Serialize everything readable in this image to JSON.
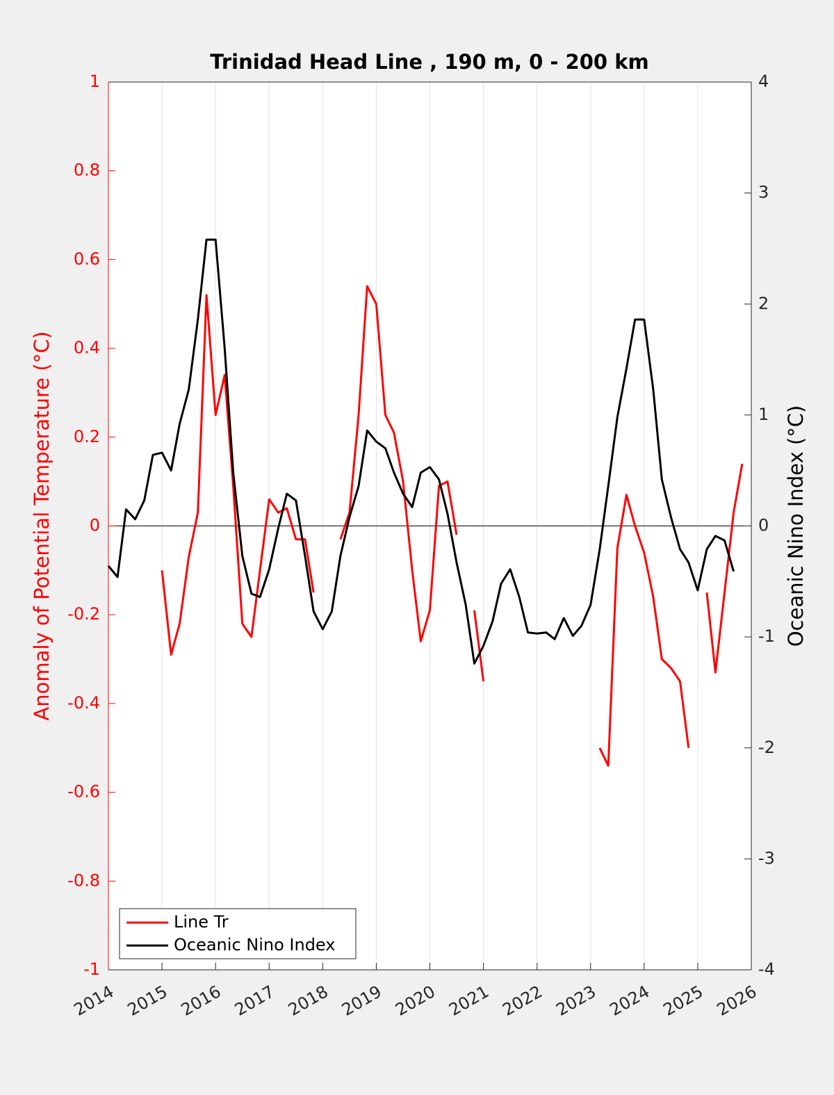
{
  "chart_data": {
    "type": "line",
    "title": "Trinidad Head Line , 190 m, 0 - 200 km",
    "ylabel": "Anomaly of Potential Temperature (°C)",
    "y2label": "Oceanic Nino Index (°C)",
    "x": [
      2014,
      2014.17,
      2014.33,
      2014.5,
      2014.67,
      2014.83,
      2015,
      2015.17,
      2015.33,
      2015.5,
      2015.67,
      2015.83,
      2016,
      2016.17,
      2016.33,
      2016.5,
      2016.67,
      2016.83,
      2017,
      2017.17,
      2017.33,
      2017.5,
      2017.67,
      2017.83,
      2018,
      2018.17,
      2018.33,
      2018.5,
      2018.67,
      2018.83,
      2019,
      2019.17,
      2019.33,
      2019.5,
      2019.67,
      2019.83,
      2020,
      2020.17,
      2020.33,
      2020.5,
      2020.67,
      2020.83,
      2021,
      2021.17,
      2021.33,
      2021.5,
      2021.67,
      2021.83,
      2022,
      2022.17,
      2022.33,
      2022.5,
      2022.67,
      2022.83,
      2023,
      2023.17,
      2023.33,
      2023.5,
      2023.67,
      2023.83,
      2024,
      2024.17,
      2024.33,
      2024.5,
      2024.67,
      2024.83,
      2025,
      2025.17,
      2025.33,
      2025.5,
      2025.67,
      2025.83
    ],
    "series": [
      {
        "name": "Line Tr",
        "color": "#ff0000",
        "values": [
          null,
          null,
          null,
          null,
          null,
          null,
          -0.1,
          -0.29,
          -0.22,
          -0.07,
          0.03,
          0.52,
          0.25,
          0.34,
          0.09,
          -0.22,
          -0.25,
          -0.1,
          0.06,
          0.03,
          0.04,
          -0.03,
          -0.03,
          -0.15,
          null,
          null,
          -0.03,
          0.03,
          0.25,
          0.54,
          0.5,
          0.25,
          0.21,
          0.1,
          -0.1,
          -0.26,
          -0.19,
          0.09,
          0.1,
          -0.02,
          null,
          -0.19,
          -0.35,
          null,
          null,
          null,
          null,
          null,
          null,
          null,
          null,
          null,
          null,
          null,
          null,
          -0.5,
          -0.54,
          -0.05,
          0.07,
          0.0,
          -0.06,
          -0.16,
          -0.3,
          -0.32,
          -0.35,
          -0.5,
          null,
          -0.15,
          -0.33,
          -0.15,
          0.03,
          0.14
        ]
      },
      {
        "name": "Oceanic Nino Index",
        "color": "#000000",
        "axis": "y2",
        "values": [
          -0.36,
          -0.46,
          0.15,
          0.06,
          0.23,
          0.64,
          0.66,
          0.5,
          0.92,
          1.23,
          1.86,
          2.58,
          2.58,
          1.6,
          0.48,
          -0.27,
          -0.61,
          -0.64,
          -0.39,
          -0.02,
          0.29,
          0.23,
          -0.27,
          -0.77,
          -0.93,
          -0.77,
          -0.27,
          0.08,
          0.36,
          0.86,
          0.76,
          0.7,
          0.48,
          0.29,
          0.17,
          0.48,
          0.53,
          0.42,
          0.11,
          -0.33,
          -0.71,
          -1.24,
          -1.08,
          -0.86,
          -0.52,
          -0.39,
          -0.64,
          -0.96,
          -0.97,
          -0.96,
          -1.02,
          -0.83,
          -0.99,
          -0.9,
          -0.71,
          -0.21,
          0.36,
          0.98,
          1.42,
          1.86,
          1.86,
          1.23,
          0.42,
          0.08,
          -0.21,
          -0.33,
          -0.58,
          -0.21,
          -0.09,
          -0.13,
          -0.41,
          null
        ]
      }
    ],
    "xlim": [
      2014,
      2026
    ],
    "xticks": [
      2014,
      2015,
      2016,
      2017,
      2018,
      2019,
      2020,
      2021,
      2022,
      2023,
      2024,
      2025,
      2026
    ],
    "ylim": [
      -1,
      1
    ],
    "yticks": [
      -1,
      -0.8,
      -0.6,
      -0.4,
      -0.2,
      0,
      0.2,
      0.4,
      0.6,
      0.8,
      1
    ],
    "y2lim": [
      -4,
      4
    ],
    "y2ticks": [
      -4,
      -3,
      -2,
      -1,
      0,
      1,
      2,
      3,
      4
    ],
    "ylabel_color": "#ff0000",
    "grid": "x",
    "legend": "lower left"
  }
}
